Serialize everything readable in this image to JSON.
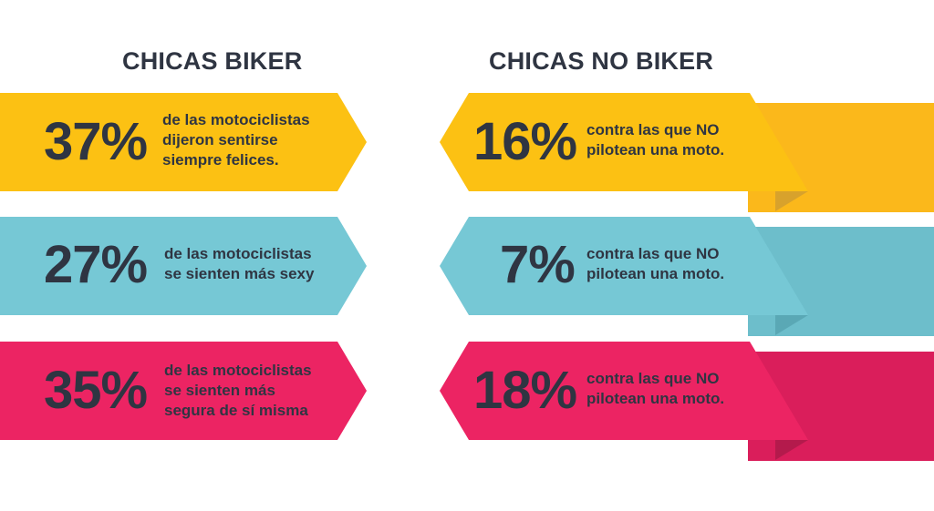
{
  "headings": {
    "left": "CHICAS BIKER",
    "right": "CHICAS NO BIKER"
  },
  "biker": [
    {
      "percent": "37%",
      "text": "de las motociclistas\ndijeron sentirse\nsiempre felices."
    },
    {
      "percent": "27%",
      "text": "de las motociclistas\nse sienten más sexy"
    },
    {
      "percent": "35%",
      "text": "de las motociclistas\nse sienten más\nsegura de sí misma"
    }
  ],
  "no_biker": [
    {
      "percent": "16%",
      "text": "contra las que NO\n pilotean una moto."
    },
    {
      "percent": "7%",
      "text": "contra las que NO\n pilotean una moto."
    },
    {
      "percent": "18%",
      "text": "contra las que NO\n pilotean una moto."
    }
  ],
  "colors": {
    "text": "#2f3542",
    "yellow": "#fcc113",
    "yellow_band": "#fbb81b",
    "yellow_fold": "#d8a22c",
    "blue": "#76c8d5",
    "blue_band": "#6dbecb",
    "blue_fold": "#5aa8b5",
    "pink": "#ec2463",
    "pink_band": "#da1e5b",
    "pink_fold": "#b41a4c"
  }
}
